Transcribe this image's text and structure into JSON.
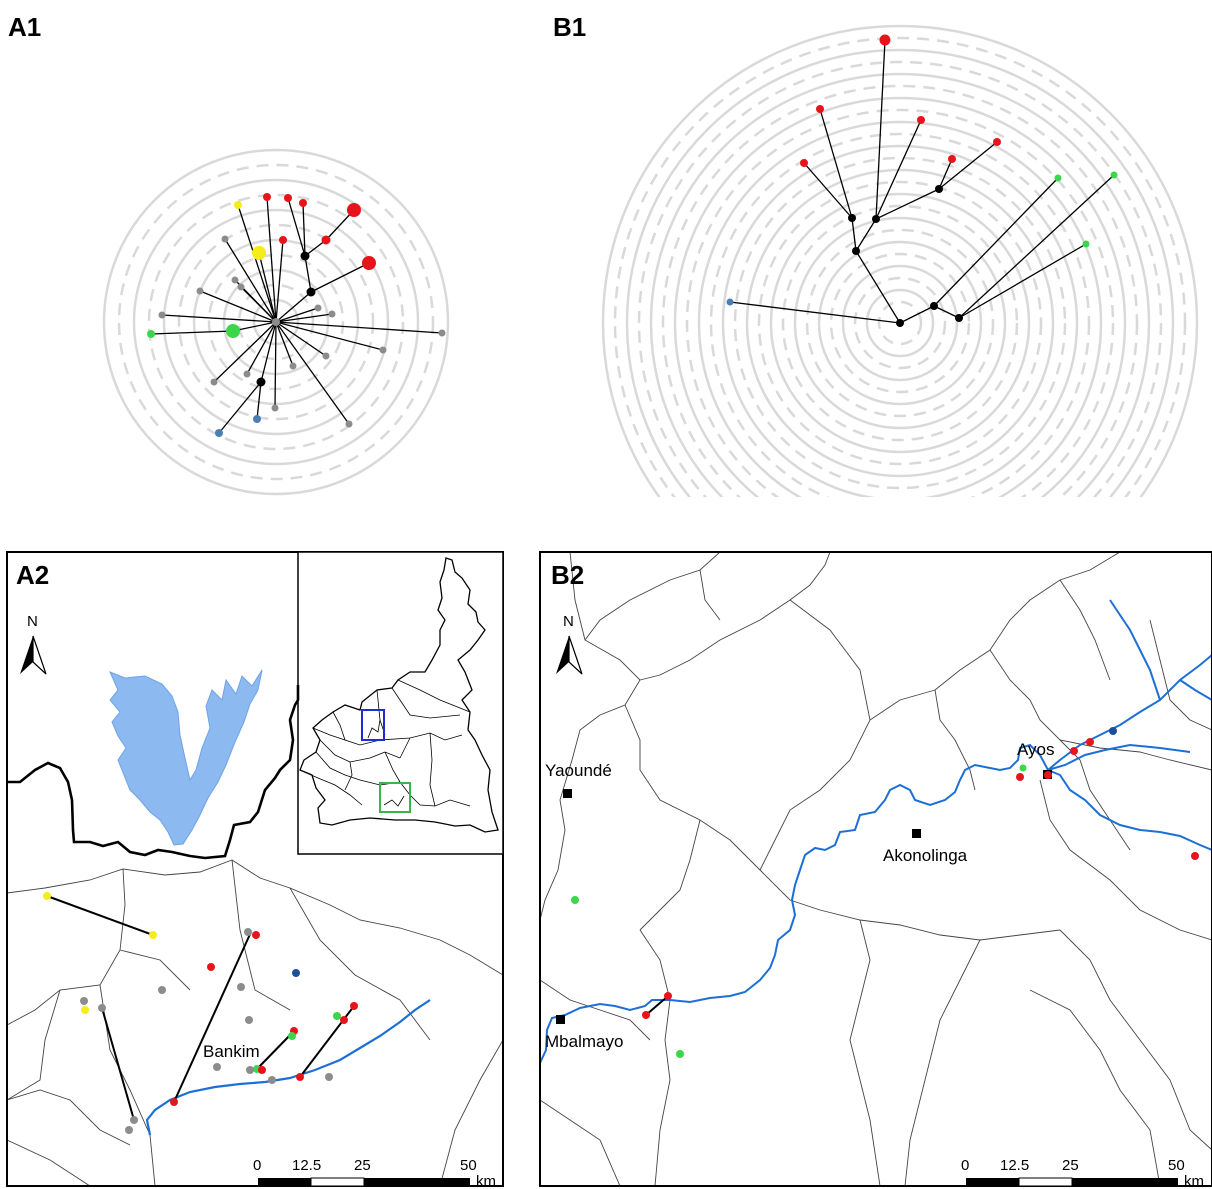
{
  "panels": {
    "a1": {
      "label": "A1"
    },
    "b1": {
      "label": "B1"
    },
    "a2": {
      "label": "A2"
    },
    "b2": {
      "label": "B2"
    }
  },
  "north_label": "N",
  "places": {
    "bankim": "Bankim",
    "yaounde": "Yaoundé",
    "akonolinga": "Akonolinga",
    "ayos": "Ayos",
    "mbalmayo": "Mbalmayo"
  },
  "scalebar": {
    "t0": "0",
    "t1": "12.5",
    "t2": "25",
    "t3": "50",
    "unit": "km"
  },
  "colors": {
    "red": "#e8141b",
    "yellow": "#f5ec19",
    "green": "#3bd64a",
    "grey": "#8c8c8c",
    "blue": "#4a7fb5",
    "dark_blue": "#1f4f9c",
    "river": "#1c6fd6",
    "lake": "#8cb9ef",
    "ring": "#d9d9d9"
  }
}
